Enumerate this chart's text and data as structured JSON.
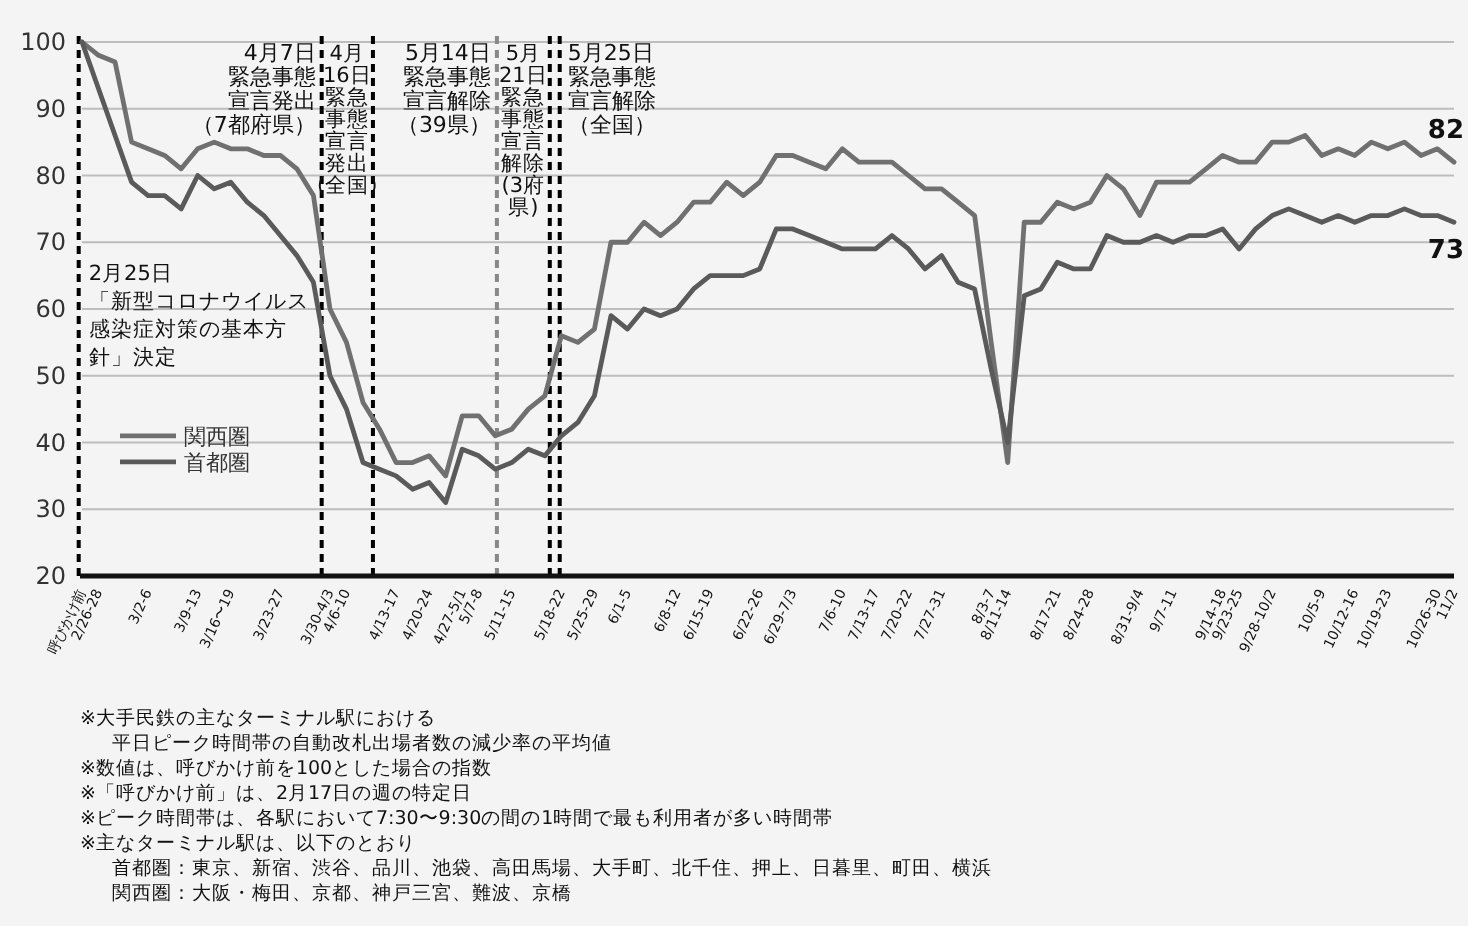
{
  "chart_data": {
    "type": "line",
    "categories": [
      "呼びかけ前",
      "2/26-28",
      null,
      null,
      "3/2-6",
      null,
      null,
      "3/9-13",
      null,
      "3/16〜19",
      null,
      null,
      "3/23-27",
      null,
      null,
      "3/30-4/3",
      "4/6-10",
      null,
      null,
      "4/13-17",
      null,
      "4/20-24",
      null,
      "4/27-5/1",
      "5/7-8",
      null,
      "5/11-15",
      null,
      null,
      "5/18-22",
      null,
      "5/25-29",
      null,
      "6/1-5",
      null,
      null,
      "6/8-12",
      null,
      "6/15-19",
      null,
      null,
      "6/22-26",
      null,
      "6/29-7/3",
      null,
      null,
      "7/6-10",
      null,
      "7/13-17",
      null,
      "7/20-22",
      null,
      "7/27-31",
      null,
      null,
      "8/3-7",
      "8/11-14",
      null,
      null,
      "8/17-21",
      null,
      "8/24-28",
      null,
      null,
      "8/31-9/4",
      null,
      "9/7-11",
      null,
      null,
      "9/14-18",
      "9/23-25",
      null,
      "9/28-10/2",
      null,
      null,
      "10/5-9",
      null,
      "10/12-16",
      null,
      "10/19-23",
      null,
      null,
      "10/26-30",
      "11/2"
    ],
    "series": [
      {
        "name": "関西圏",
        "color": "#707070",
        "values": [
          100,
          98,
          97,
          85,
          84,
          83,
          81,
          84,
          85,
          84,
          84,
          83,
          83,
          81,
          77,
          60,
          55,
          46,
          42,
          37,
          37,
          38,
          35,
          44,
          44,
          41,
          42,
          45,
          47,
          56,
          55,
          57,
          70,
          70,
          73,
          71,
          73,
          76,
          76,
          79,
          77,
          79,
          83,
          83,
          82,
          81,
          84,
          82,
          82,
          82,
          80,
          78,
          78,
          76,
          74,
          55,
          37,
          73,
          73,
          76,
          75,
          76,
          80,
          78,
          74,
          79,
          79,
          79,
          81,
          83,
          82,
          82,
          85,
          85,
          86,
          83,
          84,
          83,
          85,
          84,
          85,
          83,
          84,
          82
        ],
        "value_labels": [
          null,
          null,
          null,
          null,
          null,
          null,
          null,
          null,
          null,
          null,
          null,
          null,
          null,
          null,
          null,
          null,
          null,
          null,
          null,
          null,
          null,
          null,
          null,
          null,
          null,
          null,
          null,
          null,
          null,
          null,
          null,
          null,
          null,
          null,
          null,
          null,
          null,
          null,
          null,
          null,
          null,
          null,
          null,
          null,
          null,
          null,
          null,
          null,
          null,
          null,
          null,
          null,
          null,
          null,
          null,
          null,
          null,
          null,
          null,
          null,
          null,
          null,
          null,
          null,
          null,
          null,
          null,
          null,
          null,
          null,
          null,
          null,
          null,
          null,
          null,
          null,
          null,
          null,
          null,
          null,
          null,
          null,
          null,
          "82"
        ]
      },
      {
        "name": "首都圏",
        "color": "#5a5a5a",
        "values": [
          100,
          93,
          86,
          79,
          77,
          77,
          75,
          80,
          78,
          79,
          76,
          74,
          71,
          68,
          64,
          50,
          45,
          37,
          36,
          35,
          33,
          34,
          31,
          39,
          38,
          36,
          37,
          39,
          38,
          41,
          43,
          47,
          59,
          57,
          60,
          59,
          60,
          63,
          65,
          65,
          65,
          66,
          72,
          72,
          71,
          70,
          69,
          69,
          69,
          71,
          69,
          66,
          68,
          64,
          63,
          51,
          40,
          62,
          63,
          67,
          66,
          66,
          71,
          70,
          70,
          71,
          70,
          71,
          71,
          72,
          69,
          72,
          74,
          75,
          74,
          73,
          74,
          73,
          74,
          74,
          75,
          74,
          74,
          73
        ],
        "value_labels": [
          null,
          null,
          null,
          null,
          null,
          null,
          null,
          null,
          null,
          null,
          null,
          null,
          null,
          null,
          null,
          null,
          null,
          null,
          null,
          null,
          null,
          null,
          null,
          null,
          null,
          null,
          null,
          null,
          null,
          null,
          null,
          null,
          null,
          null,
          null,
          null,
          null,
          null,
          null,
          null,
          null,
          null,
          null,
          null,
          null,
          null,
          null,
          null,
          null,
          null,
          null,
          null,
          null,
          null,
          null,
          null,
          null,
          null,
          null,
          null,
          null,
          null,
          null,
          null,
          null,
          null,
          null,
          null,
          null,
          null,
          null,
          null,
          null,
          null,
          null,
          null,
          null,
          null,
          null,
          null,
          null,
          null,
          null,
          "73"
        ]
      }
    ],
    "ylim": [
      20,
      100
    ],
    "yticks": [
      20,
      30,
      40,
      50,
      60,
      70,
      80,
      90,
      100
    ],
    "grid": "y",
    "legend": "left",
    "annotations": [
      "2月25日「新型コロナウイルス感染症対策の基本方針」決定",
      "4月7日緊急事態宣言発出（7都府県）",
      "4月16日緊急事態宣言発出(全国)",
      "5月14日緊急事態宣言解除（39県）",
      "5月21日緊急事態宣言解除(3府県)",
      "5月25日緊急事態宣言解除（全国）",
      "※大手民鉄の主なターミナル駅における平日ピーク時間帯の自動改札出場者数の減少率の平均値",
      "※数値は、呼びかけ前を100とした場合の指数",
      "※「呼びかけ前」は、2月17日の週の特定日",
      "※ピーク時間帯は、各駅において7:30〜9:30の間の1時間で最も利用者が多い時間帯",
      "※主なターミナル駅は、以下のとおり",
      "首都圏：東京、新宿、渋谷、品川、池袋、高田馬場、大手町、北千住、押上、日暮里、町田、横浜",
      "関西圏：大阪・梅田、京都、神戸三宮、難波、京橋"
    ]
  }
}
